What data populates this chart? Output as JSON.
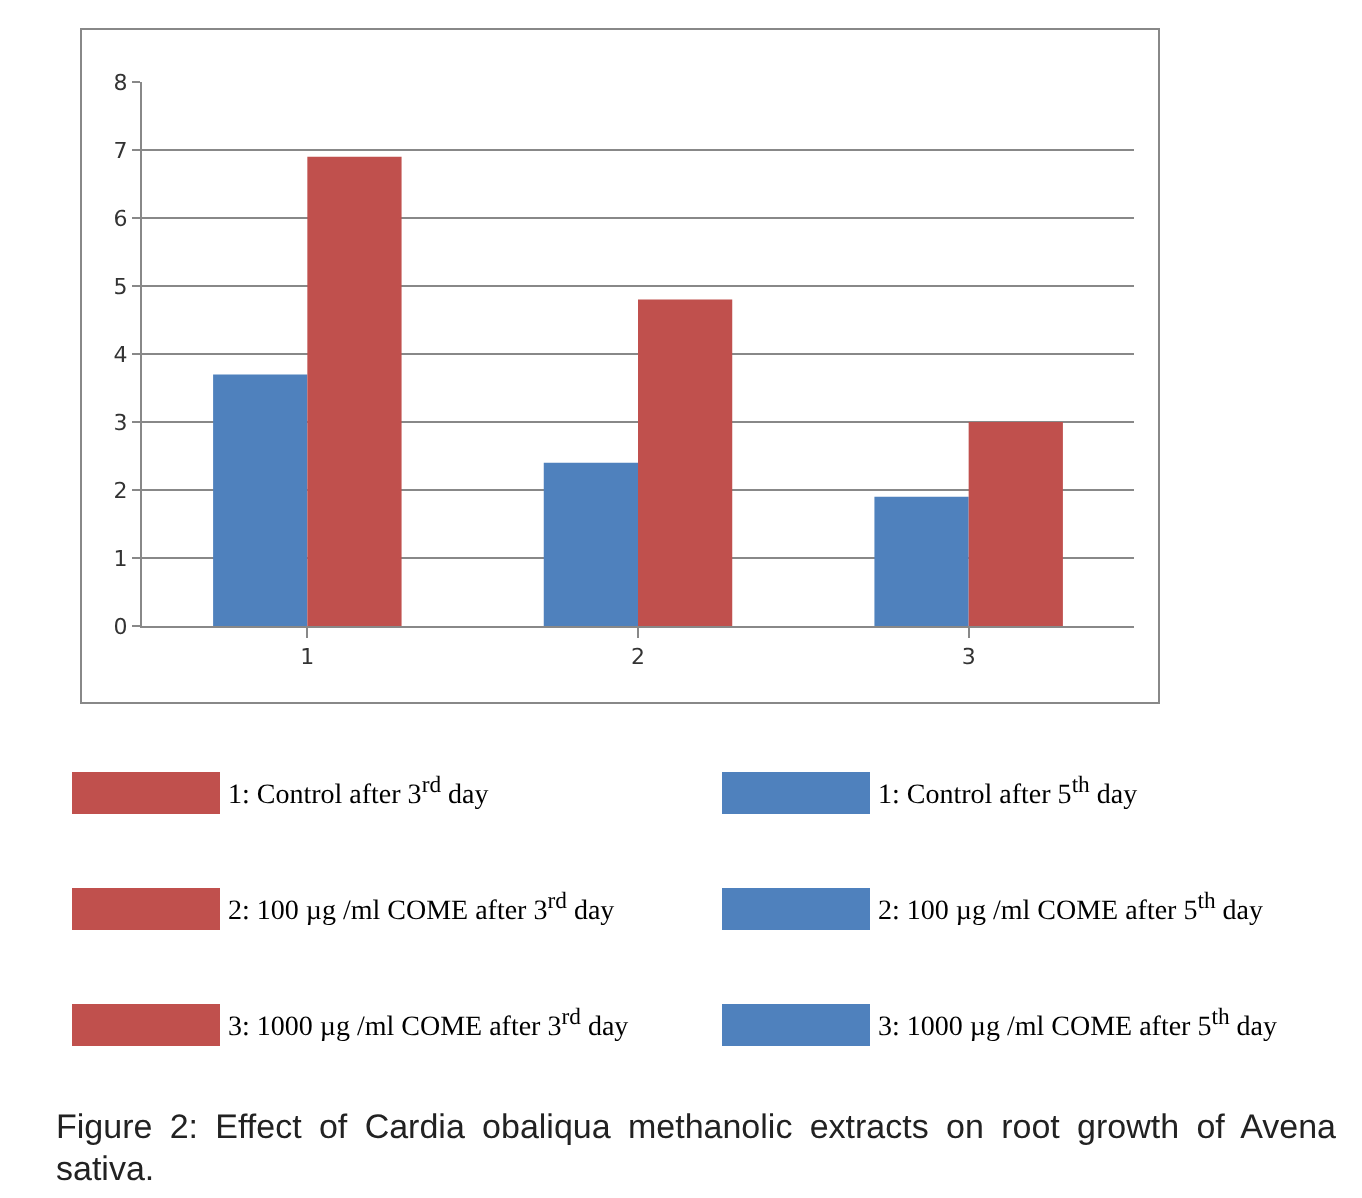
{
  "chart_data": {
    "type": "bar",
    "title": "Figure 2: Effect of Cardia obaliqua methanolic extracts on root growth of Avena sativa.",
    "categories": [
      "1",
      "2",
      "3"
    ],
    "series": [
      {
        "color": "#4f81bd",
        "values": [
          3.7,
          2.4,
          1.9
        ]
      },
      {
        "color": "#c0504d",
        "values": [
          6.9,
          4.8,
          3.0
        ]
      }
    ],
    "ylim": [
      0,
      8
    ],
    "yticks": [
      0,
      1,
      2,
      3,
      4,
      5,
      6,
      7,
      8
    ],
    "grid": "y",
    "annotations": [
      "1: Control after 3$^{rd}$ day",
      "1: Control after 5$^{th}$ day",
      "2: 100 µg /ml COME after 3$^{rd}$ day",
      "2: 100 µg /ml COME after 5$^{th}$ day",
      "3: 1000 µg /ml COME after 3$^{rd}$ day",
      "3: 1000 µg /ml COME after 5$^{th}$ day"
    ]
  }
}
